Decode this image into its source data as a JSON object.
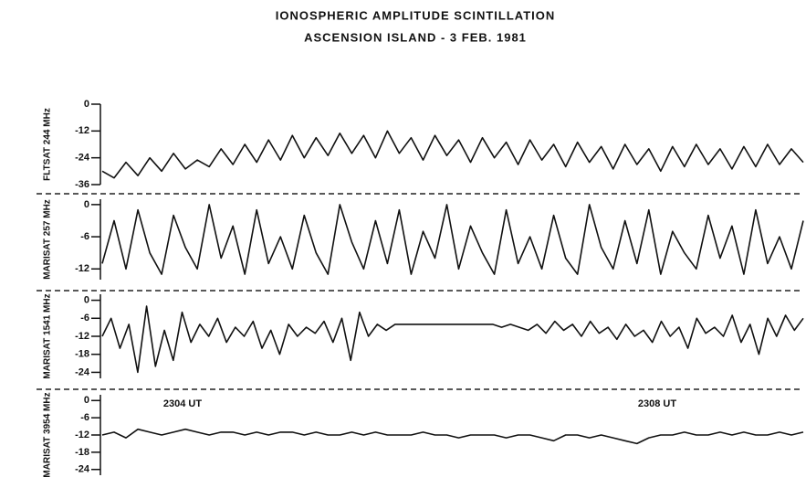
{
  "chart_data": [
    {
      "type": "line",
      "title": "IONOSPHERIC AMPLITUDE SCINTILLATION",
      "subtitle": "ASCENSION ISLAND - 3 FEB. 1981",
      "ylabel": "FLTSAT 244 MHz",
      "ylim": [
        -36,
        0
      ],
      "yticks": [
        0,
        -12,
        -24,
        -36
      ],
      "color": "#111",
      "values": [
        -30,
        -33,
        -26,
        -32,
        -24,
        -30,
        -22,
        -29,
        -25,
        -28,
        -20,
        -27,
        -18,
        -26,
        -16,
        -25,
        -14,
        -24,
        -15,
        -23,
        -13,
        -22,
        -14,
        -24,
        -12,
        -22,
        -15,
        -25,
        -14,
        -23,
        -16,
        -26,
        -15,
        -24,
        -17,
        -27,
        -16,
        -25,
        -18,
        -28,
        -17,
        -26,
        -19,
        -29,
        -18,
        -27,
        -20,
        -30,
        -19,
        -28,
        -18,
        -27,
        -20,
        -29,
        -19,
        -28,
        -18,
        -27,
        -20,
        -26
      ]
    },
    {
      "type": "line",
      "ylabel": "MARISAT 257 MHz",
      "ylim": [
        -14,
        1
      ],
      "yticks": [
        0,
        -6,
        -12
      ],
      "color": "#111",
      "values": [
        -11,
        -3,
        -12,
        -1,
        -9,
        -13,
        -2,
        -8,
        -12,
        0,
        -10,
        -4,
        -13,
        -1,
        -11,
        -6,
        -12,
        -2,
        -9,
        -13,
        0,
        -7,
        -12,
        -3,
        -11,
        -1,
        -13,
        -5,
        -10,
        0,
        -12,
        -4,
        -9,
        -13,
        -1,
        -11,
        -6,
        -12,
        -2,
        -10,
        -13,
        0,
        -8,
        -12,
        -3,
        -11,
        -1,
        -13,
        -5,
        -9,
        -12,
        -2,
        -10,
        -4,
        -13,
        -1,
        -11,
        -6,
        -12,
        -3
      ]
    },
    {
      "type": "line",
      "ylabel": "MARISAT 1541 MHz",
      "ylim": [
        -26,
        2
      ],
      "yticks": [
        0,
        -6,
        -12,
        -18,
        -24
      ],
      "color": "#111",
      "values": [
        -12,
        -6,
        -16,
        -8,
        -24,
        -2,
        -22,
        -10,
        -20,
        -4,
        -14,
        -8,
        -12,
        -6,
        -14,
        -9,
        -12,
        -7,
        -16,
        -10,
        -18,
        -8,
        -12,
        -9,
        -11,
        -7,
        -14,
        -6,
        -20,
        -4,
        -12,
        -8,
        -10,
        -8,
        -8,
        -8,
        -8,
        -8,
        -8,
        -8,
        -8,
        -8,
        -8,
        -8,
        -8,
        -9,
        -8,
        -9,
        -10,
        -8,
        -11,
        -7,
        -10,
        -8,
        -12,
        -7,
        -11,
        -9,
        -13,
        -8,
        -12,
        -10,
        -14,
        -7,
        -12,
        -9,
        -16,
        -6,
        -11,
        -9,
        -12,
        -5,
        -14,
        -8,
        -18,
        -6,
        -12,
        -5,
        -10,
        -6
      ]
    },
    {
      "type": "line",
      "ylabel": "MARISAT 3954 MHz",
      "ylim": [
        -26,
        2
      ],
      "yticks": [
        0,
        -6,
        -12,
        -18,
        -24
      ],
      "color": "#111",
      "annotations": [
        "2304 UT",
        "2308 UT"
      ],
      "values": [
        -12,
        -11,
        -13,
        -10,
        -11,
        -12,
        -11,
        -10,
        -11,
        -12,
        -11,
        -11,
        -12,
        -11,
        -12,
        -11,
        -11,
        -12,
        -11,
        -12,
        -12,
        -11,
        -12,
        -11,
        -12,
        -12,
        -12,
        -11,
        -12,
        -12,
        -13,
        -12,
        -12,
        -12,
        -13,
        -12,
        -12,
        -13,
        -14,
        -12,
        -12,
        -13,
        -12,
        -13,
        -14,
        -15,
        -13,
        -12,
        -12,
        -11,
        -12,
        -12,
        -11,
        -12,
        -11,
        -12,
        -12,
        -11,
        -12,
        -11
      ]
    }
  ]
}
